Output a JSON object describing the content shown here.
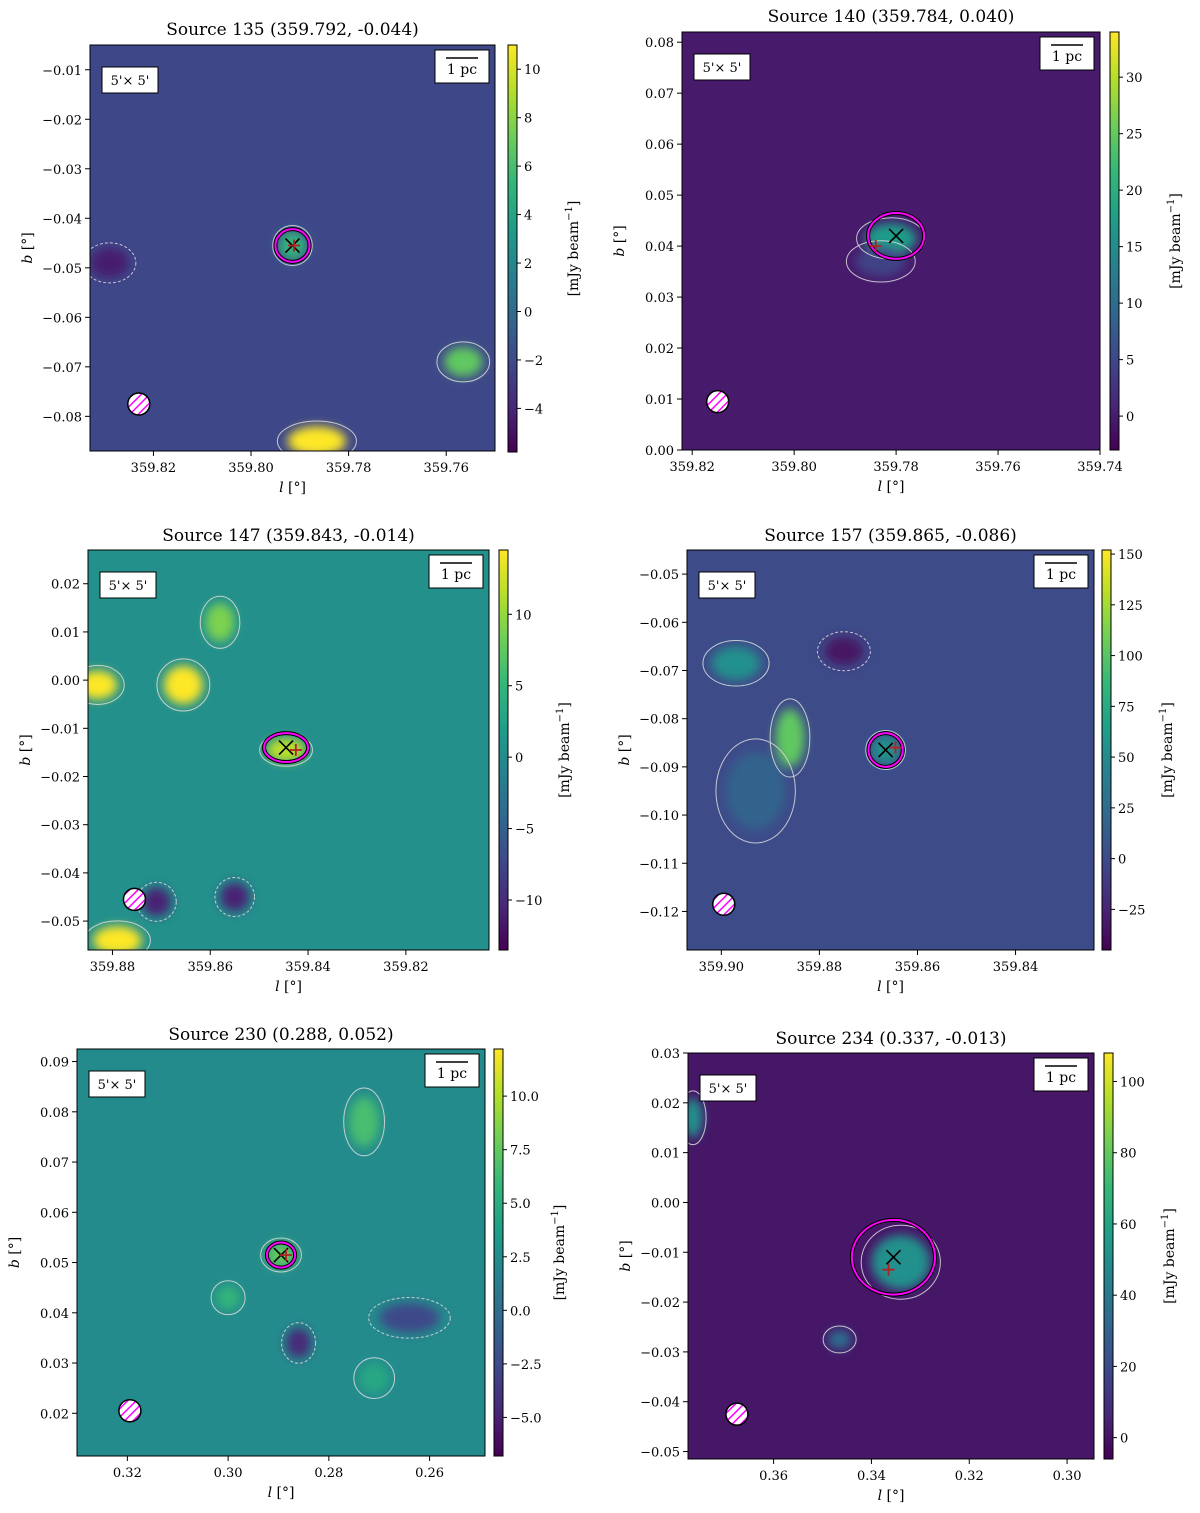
{
  "units_label": "[mJy beam",
  "units_sup": "−1",
  "units_close": "]",
  "xlabel_var": "l",
  "xlabel_unit": " [°]",
  "ylabel_var": "b",
  "ylabel_unit": " [°]",
  "scale_text": "1 pc",
  "fov_text": "5'× 5'",
  "colormap": [
    "#440154",
    "#482878",
    "#3e4989",
    "#31688e",
    "#26828e",
    "#1f9e89",
    "#35b779",
    "#6ece58",
    "#b5de2b",
    "#fde725"
  ],
  "marker_x_color": "#000000",
  "marker_plus_color": "#b22222",
  "contour_main_color": "#ff00ff",
  "beam_color": "#ff00ff",
  "chart_data": [
    {
      "type": "heatmap",
      "title": "Source 135 (359.792, -0.044)",
      "xlim": [
        359.833,
        359.75
      ],
      "ylim": [
        -0.087,
        -0.005
      ],
      "xticks": [
        {
          "v": 359.82,
          "t": "359.82"
        },
        {
          "v": 359.8,
          "t": "359.80"
        },
        {
          "v": 359.78,
          "t": "359.78"
        },
        {
          "v": 359.76,
          "t": "359.76"
        }
      ],
      "yticks": [
        {
          "v": -0.01,
          "t": "−0.01"
        },
        {
          "v": -0.02,
          "t": "−0.02"
        },
        {
          "v": -0.03,
          "t": "−0.03"
        },
        {
          "v": -0.04,
          "t": "−0.04"
        },
        {
          "v": -0.05,
          "t": "−0.05"
        },
        {
          "v": -0.06,
          "t": "−0.06"
        },
        {
          "v": -0.07,
          "t": "−0.07"
        },
        {
          "v": -0.08,
          "t": "−0.08"
        }
      ],
      "cbar_range": [
        -5.8,
        11
      ],
      "cbar_ticks": [
        {
          "v": 10,
          "t": "10"
        },
        {
          "v": 8,
          "t": "8"
        },
        {
          "v": 6,
          "t": "6"
        },
        {
          "v": 4,
          "t": "4"
        },
        {
          "v": 2,
          "t": "2"
        },
        {
          "v": 0,
          "t": "0"
        },
        {
          "v": -2,
          "t": "−2"
        },
        {
          "v": -4,
          "t": "−4"
        }
      ],
      "background_level": 0.22,
      "source_x": [
        359.7915,
        -0.0455
      ],
      "source_plus": [
        359.7912,
        -0.0455
      ],
      "source_radius_l": 0.0035,
      "source_radius_b": 0.0033,
      "beam_pos": [
        359.823,
        -0.0775
      ],
      "blobs": [
        {
          "l": 359.7915,
          "b": -0.0455,
          "rl": 0.003,
          "rb": 0.003,
          "level": 0.65
        },
        {
          "l": 359.7565,
          "b": -0.069,
          "rl": 0.004,
          "rb": 0.003,
          "level": 0.75
        },
        {
          "l": 359.7865,
          "b": -0.085,
          "rl": 0.006,
          "rb": 0.003,
          "level": 1.0
        },
        {
          "l": 359.829,
          "b": -0.049,
          "rl": 0.004,
          "rb": 0.003,
          "level": 0.08
        }
      ]
    },
    {
      "type": "heatmap",
      "title": "Source 140 (359.784, 0.040)",
      "xlim": [
        359.822,
        359.74
      ],
      "ylim": [
        0.0,
        0.082
      ],
      "xticks": [
        {
          "v": 359.82,
          "t": "359.82"
        },
        {
          "v": 359.8,
          "t": "359.80"
        },
        {
          "v": 359.78,
          "t": "359.78"
        },
        {
          "v": 359.76,
          "t": "359.76"
        },
        {
          "v": 359.74,
          "t": "359.74"
        }
      ],
      "yticks": [
        {
          "v": 0.0,
          "t": "0.00"
        },
        {
          "v": 0.01,
          "t": "0.01"
        },
        {
          "v": 0.02,
          "t": "0.02"
        },
        {
          "v": 0.03,
          "t": "0.03"
        },
        {
          "v": 0.04,
          "t": "0.04"
        },
        {
          "v": 0.05,
          "t": "0.05"
        },
        {
          "v": 0.06,
          "t": "0.06"
        },
        {
          "v": 0.07,
          "t": "0.07"
        },
        {
          "v": 0.08,
          "t": "0.08"
        }
      ],
      "cbar_range": [
        -3,
        34
      ],
      "cbar_ticks": [
        {
          "v": 30,
          "t": "30"
        },
        {
          "v": 25,
          "t": "25"
        },
        {
          "v": 20,
          "t": "20"
        },
        {
          "v": 15,
          "t": "15"
        },
        {
          "v": 10,
          "t": "10"
        },
        {
          "v": 5,
          "t": "5"
        },
        {
          "v": 0,
          "t": "0"
        }
      ],
      "background_level": 0.07,
      "source_x": [
        359.78,
        0.042
      ],
      "source_plus": [
        359.784,
        0.04
      ],
      "source_radius_l": 0.0055,
      "source_radius_b": 0.0045,
      "beam_pos": [
        359.815,
        0.0095
      ],
      "blobs": [
        {
          "l": 359.781,
          "b": 0.0415,
          "rl": 0.005,
          "rb": 0.003,
          "level": 0.55
        },
        {
          "l": 359.783,
          "b": 0.037,
          "rl": 0.005,
          "rb": 0.003,
          "level": 0.2
        }
      ]
    },
    {
      "type": "heatmap",
      "title": "Source 147 (359.843, -0.014)",
      "xlim": [
        359.885,
        359.803
      ],
      "ylim": [
        -0.056,
        0.027
      ],
      "xticks": [
        {
          "v": 359.88,
          "t": "359.88"
        },
        {
          "v": 359.86,
          "t": "359.86"
        },
        {
          "v": 359.84,
          "t": "359.84"
        },
        {
          "v": 359.82,
          "t": "359.82"
        }
      ],
      "yticks": [
        {
          "v": 0.02,
          "t": "0.02"
        },
        {
          "v": 0.01,
          "t": "0.01"
        },
        {
          "v": 0.0,
          "t": "0.00"
        },
        {
          "v": -0.01,
          "t": "−0.01"
        },
        {
          "v": -0.02,
          "t": "−0.02"
        },
        {
          "v": -0.03,
          "t": "−0.03"
        },
        {
          "v": -0.04,
          "t": "−0.04"
        },
        {
          "v": -0.05,
          "t": "−0.05"
        }
      ],
      "cbar_range": [
        -13.5,
        14.5
      ],
      "cbar_ticks": [
        {
          "v": 10,
          "t": "10"
        },
        {
          "v": 5,
          "t": "5"
        },
        {
          "v": 0,
          "t": "0"
        },
        {
          "v": -5,
          "t": "−5"
        },
        {
          "v": -10,
          "t": "−10"
        }
      ],
      "background_level": 0.5,
      "source_x": [
        359.8445,
        -0.014
      ],
      "source_plus": [
        359.8425,
        -0.0145
      ],
      "source_radius_l": 0.0045,
      "source_radius_b": 0.003,
      "beam_pos": [
        359.8755,
        -0.0455
      ],
      "blobs": [
        {
          "l": 359.8445,
          "b": -0.0145,
          "rl": 0.004,
          "rb": 0.0025,
          "level": 0.9
        },
        {
          "l": 359.883,
          "b": -0.001,
          "rl": 0.004,
          "rb": 0.003,
          "level": 1.0
        },
        {
          "l": 359.8655,
          "b": -0.001,
          "rl": 0.004,
          "rb": 0.004,
          "level": 1.0
        },
        {
          "l": 359.879,
          "b": -0.054,
          "rl": 0.005,
          "rb": 0.003,
          "level": 1.0
        },
        {
          "l": 359.858,
          "b": 0.012,
          "rl": 0.003,
          "rb": 0.004,
          "level": 0.8
        },
        {
          "l": 359.855,
          "b": -0.045,
          "rl": 0.003,
          "rb": 0.003,
          "level": 0.1
        },
        {
          "l": 359.871,
          "b": -0.046,
          "rl": 0.003,
          "rb": 0.003,
          "level": 0.1
        }
      ]
    },
    {
      "type": "heatmap",
      "title": "Source 157 (359.865, -0.086)",
      "xlim": [
        359.907,
        359.824
      ],
      "ylim": [
        -0.128,
        -0.045
      ],
      "xticks": [
        {
          "v": 359.9,
          "t": "359.90"
        },
        {
          "v": 359.88,
          "t": "359.88"
        },
        {
          "v": 359.86,
          "t": "359.86"
        },
        {
          "v": 359.84,
          "t": "359.84"
        }
      ],
      "yticks": [
        {
          "v": -0.05,
          "t": "−0.05"
        },
        {
          "v": -0.06,
          "t": "−0.06"
        },
        {
          "v": -0.07,
          "t": "−0.07"
        },
        {
          "v": -0.08,
          "t": "−0.08"
        },
        {
          "v": -0.09,
          "t": "−0.09"
        },
        {
          "v": -0.1,
          "t": "−0.10"
        },
        {
          "v": -0.11,
          "t": "−0.11"
        },
        {
          "v": -0.12,
          "t": "−0.12"
        }
      ],
      "cbar_range": [
        -45,
        152
      ],
      "cbar_ticks": [
        {
          "v": 150,
          "t": "150"
        },
        {
          "v": 125,
          "t": "125"
        },
        {
          "v": 100,
          "t": "100"
        },
        {
          "v": 75,
          "t": "75"
        },
        {
          "v": 50,
          "t": "50"
        },
        {
          "v": 25,
          "t": "25"
        },
        {
          "v": 0,
          "t": "0"
        },
        {
          "v": -25,
          "t": "−25"
        }
      ],
      "background_level": 0.23,
      "source_x": [
        359.8665,
        -0.0865
      ],
      "source_plus": [
        359.8645,
        -0.086
      ],
      "source_radius_l": 0.0035,
      "source_radius_b": 0.0035,
      "beam_pos": [
        359.8995,
        -0.1185
      ],
      "blobs": [
        {
          "l": 359.886,
          "b": -0.084,
          "rl": 0.003,
          "rb": 0.006,
          "level": 0.75
        },
        {
          "l": 359.897,
          "b": -0.0685,
          "rl": 0.005,
          "rb": 0.0035,
          "level": 0.5
        },
        {
          "l": 359.8665,
          "b": -0.0865,
          "rl": 0.003,
          "rb": 0.003,
          "level": 0.5
        },
        {
          "l": 359.875,
          "b": -0.066,
          "rl": 0.004,
          "rb": 0.003,
          "level": 0.05
        },
        {
          "l": 359.893,
          "b": -0.095,
          "rl": 0.006,
          "rb": 0.008,
          "level": 0.32
        }
      ]
    },
    {
      "type": "heatmap",
      "title": "Source 230 (0.288, 0.052)",
      "xlim": [
        0.33,
        0.249
      ],
      "ylim": [
        0.0115,
        0.0925
      ],
      "xticks": [
        {
          "v": 0.32,
          "t": "0.32"
        },
        {
          "v": 0.3,
          "t": "0.30"
        },
        {
          "v": 0.28,
          "t": "0.28"
        },
        {
          "v": 0.26,
          "t": "0.26"
        }
      ],
      "yticks": [
        {
          "v": 0.09,
          "t": "0.09"
        },
        {
          "v": 0.08,
          "t": "0.08"
        },
        {
          "v": 0.07,
          "t": "0.07"
        },
        {
          "v": 0.06,
          "t": "0.06"
        },
        {
          "v": 0.05,
          "t": "0.05"
        },
        {
          "v": 0.04,
          "t": "0.04"
        },
        {
          "v": 0.03,
          "t": "0.03"
        },
        {
          "v": 0.02,
          "t": "0.02"
        }
      ],
      "cbar_range": [
        -6.8,
        12.2
      ],
      "cbar_ticks": [
        {
          "v": 10.0,
          "t": "10.0"
        },
        {
          "v": 7.5,
          "t": "7.5"
        },
        {
          "v": 5.0,
          "t": "5.0"
        },
        {
          "v": 2.5,
          "t": "2.5"
        },
        {
          "v": 0.0,
          "t": "0.0"
        },
        {
          "v": -2.5,
          "t": "−2.5"
        },
        {
          "v": -5.0,
          "t": "−5.0"
        }
      ],
      "background_level": 0.48,
      "source_x": [
        0.2895,
        0.0515
      ],
      "source_plus": [
        0.2885,
        0.0515
      ],
      "source_radius_l": 0.0028,
      "source_radius_b": 0.0025,
      "beam_pos": [
        0.3195,
        0.0205
      ],
      "blobs": [
        {
          "l": 0.2895,
          "b": 0.0515,
          "rl": 0.003,
          "rb": 0.0025,
          "level": 0.75
        },
        {
          "l": 0.273,
          "b": 0.078,
          "rl": 0.003,
          "rb": 0.005,
          "level": 0.7
        },
        {
          "l": 0.3,
          "b": 0.043,
          "rl": 0.0025,
          "rb": 0.0025,
          "level": 0.65
        },
        {
          "l": 0.264,
          "b": 0.039,
          "rl": 0.006,
          "rb": 0.003,
          "level": 0.22
        },
        {
          "l": 0.286,
          "b": 0.034,
          "rl": 0.0025,
          "rb": 0.003,
          "level": 0.12
        },
        {
          "l": 0.271,
          "b": 0.027,
          "rl": 0.003,
          "rb": 0.003,
          "level": 0.6
        }
      ]
    },
    {
      "type": "heatmap",
      "title": "Source 234 (0.337, -0.013)",
      "xlim": [
        0.3775,
        0.2945
      ],
      "ylim": [
        -0.0515,
        0.03
      ],
      "xticks": [
        {
          "v": 0.36,
          "t": "0.36"
        },
        {
          "v": 0.34,
          "t": "0.34"
        },
        {
          "v": 0.32,
          "t": "0.32"
        },
        {
          "v": 0.3,
          "t": "0.30"
        }
      ],
      "yticks": [
        {
          "v": 0.03,
          "t": "0.03"
        },
        {
          "v": 0.02,
          "t": "0.02"
        },
        {
          "v": 0.01,
          "t": "0.01"
        },
        {
          "v": 0.0,
          "t": "0.00"
        },
        {
          "v": -0.01,
          "t": "−0.01"
        },
        {
          "v": -0.02,
          "t": "−0.02"
        },
        {
          "v": -0.03,
          "t": "−0.03"
        },
        {
          "v": -0.04,
          "t": "−0.04"
        },
        {
          "v": -0.05,
          "t": "−0.05"
        }
      ],
      "cbar_range": [
        -6,
        108
      ],
      "cbar_ticks": [
        {
          "v": 100,
          "t": "100"
        },
        {
          "v": 80,
          "t": "80"
        },
        {
          "v": 60,
          "t": "60"
        },
        {
          "v": 40,
          "t": "40"
        },
        {
          "v": 20,
          "t": "20"
        },
        {
          "v": 0,
          "t": "0"
        }
      ],
      "background_level": 0.06,
      "source_x": [
        0.3355,
        -0.011
      ],
      "source_plus": [
        0.3365,
        -0.0135
      ],
      "source_radius_l": 0.0085,
      "source_radius_b": 0.0075,
      "beam_pos": [
        0.3675,
        -0.0425
      ],
      "blobs": [
        {
          "l": 0.334,
          "b": -0.012,
          "rl": 0.006,
          "rb": 0.0055,
          "level": 0.5
        },
        {
          "l": 0.3465,
          "b": -0.0275,
          "rl": 0.0025,
          "rb": 0.002,
          "level": 0.35
        },
        {
          "l": 0.3765,
          "b": 0.017,
          "rl": 0.002,
          "rb": 0.004,
          "level": 0.5
        }
      ]
    }
  ]
}
